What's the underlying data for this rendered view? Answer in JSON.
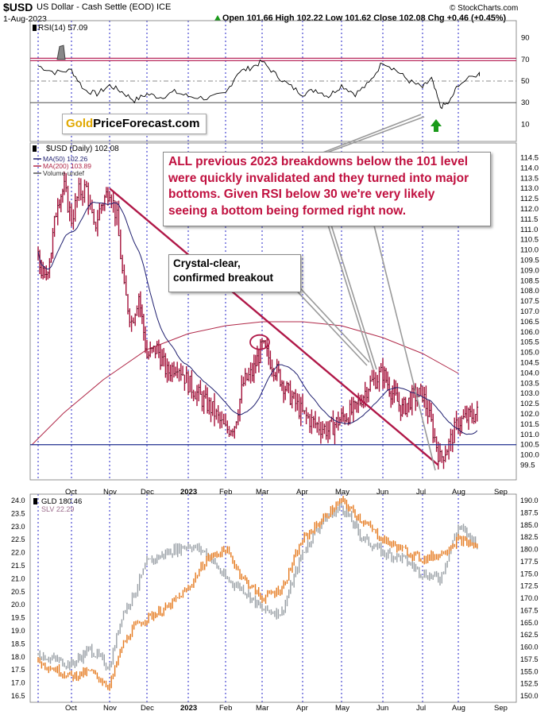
{
  "header": {
    "symbol": "$USD",
    "name": "US Dollar - Cash Settle (EOD)",
    "exchange": "ICE",
    "date": "1-Aug-2023",
    "quote": "Open 101.66  High 102.22  Low 101.62  Close 102.08  Chg +0.46 (+0.45%)",
    "arrow_icon": "up-triangle",
    "source": "© StockCharts.com"
  },
  "logo": {
    "part1": "Gold",
    "part2": "PriceForecast.com"
  },
  "annotations": {
    "main_lines": [
      "ALL previous 2023 breakdowns below the 101 level",
      "were quickly invalidated and they turned into major",
      "bottoms. Given RSI below 30 we're very likely",
      "seeing a bottom being formed right now."
    ],
    "breakout_lines": [
      "Crystal-clear,",
      "confirmed breakout"
    ]
  },
  "colors": {
    "price_bars": "#a5113a",
    "ma50": "#1f1f6f",
    "ma200": "#b02848",
    "trendline": "#b01848",
    "support": "#1f2f8f",
    "rsi_line": "#000000",
    "rsi_band": "#b0104a",
    "gld": "#e57a1f",
    "slv": "#9aa0a6",
    "annotation_text": "#c0103f",
    "up_arrow": "#1a9a1a"
  },
  "chart_data": [
    {
      "type": "line",
      "title": "RSI(14) 57.09",
      "y_ticks": [
        10,
        30,
        50,
        70,
        90
      ],
      "ylim": [
        0,
        100
      ],
      "reference_levels": [
        70,
        30,
        50
      ],
      "x_months": [
        "Sep",
        "Oct",
        "Nov",
        "Dec",
        "2023",
        "Feb",
        "Mar",
        "Apr",
        "May",
        "Jun",
        "Jul",
        "Aug",
        "Sep"
      ],
      "points": [
        [
          "Sep",
          64
        ],
        [
          "Sep",
          58
        ],
        [
          "Oct",
          60
        ],
        [
          "Oct",
          42
        ],
        [
          "Oct",
          38
        ],
        [
          "Nov",
          46
        ],
        [
          "Nov",
          40
        ],
        [
          "Nov",
          32
        ],
        [
          "Dec",
          38
        ],
        [
          "Dec",
          35
        ],
        [
          "Dec",
          40
        ],
        [
          "2023",
          36
        ],
        [
          "2023",
          34
        ],
        [
          "Feb",
          38
        ],
        [
          "Feb",
          58
        ],
        [
          "Feb",
          62
        ],
        [
          "Mar",
          68
        ],
        [
          "Mar",
          56
        ],
        [
          "Mar",
          46
        ],
        [
          "Apr",
          38
        ],
        [
          "Apr",
          42
        ],
        [
          "Apr",
          36
        ],
        [
          "May",
          46
        ],
        [
          "May",
          38
        ],
        [
          "May",
          48
        ],
        [
          "Jun",
          68
        ],
        [
          "Jun",
          60
        ],
        [
          "Jun",
          50
        ],
        [
          "Jul",
          44
        ],
        [
          "Jul",
          52
        ],
        [
          "Jul",
          26
        ],
        [
          "Jul",
          30
        ],
        [
          "Aug",
          47
        ],
        [
          "Aug",
          57
        ]
      ]
    },
    {
      "type": "bar",
      "title": "$USD (Daily) 102.08",
      "legend": [
        {
          "name": "MA(50) 102.26",
          "color": "#1f1f6f"
        },
        {
          "name": "MA(200) 103.89",
          "color": "#b02848"
        },
        {
          "name": "Volume undef",
          "color": "#555555"
        }
      ],
      "y_ticks": [
        99.5,
        100.0,
        100.5,
        101.0,
        101.5,
        102.0,
        102.5,
        103.0,
        103.5,
        104.0,
        104.5,
        105.0,
        105.5,
        106.0,
        106.5,
        107.0,
        107.5,
        108.0,
        108.5,
        109.0,
        109.5,
        110.0,
        110.5,
        111.0,
        111.5,
        112.0,
        112.5,
        113.0,
        113.5,
        114.0,
        114.5
      ],
      "ylim": [
        99.25,
        114.75
      ],
      "x_months": [
        "Oct",
        "Nov",
        "Dec",
        "2023",
        "Feb",
        "Mar",
        "Apr",
        "May",
        "Jun",
        "Jul",
        "Aug",
        "Sep"
      ],
      "close_points": [
        [
          "Sep",
          109.5
        ],
        [
          "Sep",
          108.5
        ],
        [
          "Sep",
          110.0
        ],
        [
          "Sep",
          112.5
        ],
        [
          "Sep",
          113.0
        ],
        [
          "Oct",
          111.5
        ],
        [
          "Oct",
          112.8
        ],
        [
          "Oct",
          113.0
        ],
        [
          "Oct",
          111.0
        ],
        [
          "Oct",
          112.2
        ],
        [
          "Nov",
          113.0
        ],
        [
          "Nov",
          111.5
        ],
        [
          "Nov",
          108.0
        ],
        [
          "Nov",
          106.5
        ],
        [
          "Nov",
          107.8
        ],
        [
          "Dec",
          104.8
        ],
        [
          "Dec",
          105.2
        ],
        [
          "Dec",
          104.0
        ],
        [
          "Dec",
          104.5
        ],
        [
          "2023",
          103.5
        ],
        [
          "2023",
          102.8
        ],
        [
          "2023",
          102.2
        ],
        [
          "Feb",
          101.2
        ],
        [
          "Feb",
          101.5
        ],
        [
          "Feb",
          103.5
        ],
        [
          "Feb",
          104.0
        ],
        [
          "Mar",
          105.3
        ],
        [
          "Mar",
          104.2
        ],
        [
          "Mar",
          103.0
        ],
        [
          "Apr",
          102.0
        ],
        [
          "Apr",
          101.5
        ],
        [
          "Apr",
          101.2
        ],
        [
          "May",
          101.8
        ],
        [
          "May",
          102.2
        ],
        [
          "May",
          103.4
        ],
        [
          "Jun",
          104.0
        ],
        [
          "Jun",
          103.0
        ],
        [
          "Jun",
          102.2
        ],
        [
          "Jun",
          102.8
        ],
        [
          "Jul",
          103.0
        ],
        [
          "Jul",
          101.5
        ],
        [
          "Jul",
          99.8
        ],
        [
          "Jul",
          100.5
        ],
        [
          "Aug",
          101.6
        ],
        [
          "Aug",
          102.08
        ]
      ],
      "support_level": 100.5,
      "trendline": {
        "from": [
          "Nov",
          113.0
        ],
        "to": [
          "Jul",
          99.5
        ]
      }
    },
    {
      "type": "line",
      "title": "GLD 180.46",
      "series": [
        {
          "name": "GLD 180.46",
          "axis": "right",
          "color": "#e57a1f",
          "points": [
            [
              "Sep",
              157
            ],
            [
              "Oct",
              154
            ],
            [
              "Oct",
              155
            ],
            [
              "Nov",
              152
            ],
            [
              "Nov",
              160
            ],
            [
              "Nov",
              164
            ],
            [
              "Dec",
              166
            ],
            [
              "Dec",
              168
            ],
            [
              "2023",
              172
            ],
            [
              "2023",
              178
            ],
            [
              "Feb",
              180
            ],
            [
              "Feb",
              174
            ],
            [
              "Mar",
              170
            ],
            [
              "Mar",
              172
            ],
            [
              "Apr",
              182
            ],
            [
              "Apr",
              186
            ],
            [
              "May",
              190
            ],
            [
              "May",
              186
            ],
            [
              "Jun",
              182
            ],
            [
              "Jun",
              180
            ],
            [
              "Jul",
              178
            ],
            [
              "Jul",
              179
            ],
            [
              "Aug",
              182
            ],
            [
              "Aug",
              180.46
            ]
          ]
        },
        {
          "name": "SLV 22.29",
          "axis": "left",
          "color": "#9aa0a6",
          "points": [
            [
              "Sep",
              18.1
            ],
            [
              "Oct",
              17.7
            ],
            [
              "Oct",
              18.3
            ],
            [
              "Nov",
              17.6
            ],
            [
              "Nov",
              19.6
            ],
            [
              "Nov",
              20.4
            ],
            [
              "Dec",
              21.6
            ],
            [
              "Dec",
              22.0
            ],
            [
              "2023",
              22.3
            ],
            [
              "2023",
              22.0
            ],
            [
              "Feb",
              21.0
            ],
            [
              "Feb",
              20.6
            ],
            [
              "Mar",
              19.8
            ],
            [
              "Mar",
              19.7
            ],
            [
              "Apr",
              22.0
            ],
            [
              "Apr",
              23.2
            ],
            [
              "May",
              23.8
            ],
            [
              "May",
              22.6
            ],
            [
              "Jun",
              22.0
            ],
            [
              "Jun",
              21.8
            ],
            [
              "Jul",
              21.2
            ],
            [
              "Jul",
              21.0
            ],
            [
              "Aug",
              23.0
            ],
            [
              "Aug",
              22.29
            ]
          ]
        }
      ],
      "left_ticks": [
        16.5,
        17.0,
        17.5,
        18.0,
        18.5,
        19.0,
        19.5,
        20.0,
        20.5,
        21.0,
        21.5,
        22.0,
        22.5,
        23.0,
        23.5,
        24.0
      ],
      "right_ticks": [
        150.0,
        152.5,
        155.0,
        157.5,
        160.0,
        162.5,
        165.0,
        167.5,
        170.0,
        172.5,
        175.0,
        177.5,
        180.0,
        182.5,
        185.0,
        187.5,
        190.0
      ],
      "x_months": [
        "Oct",
        "Nov",
        "Dec",
        "2023",
        "Feb",
        "Mar",
        "Apr",
        "May",
        "Jun",
        "Jul",
        "Aug",
        "Sep"
      ]
    }
  ]
}
